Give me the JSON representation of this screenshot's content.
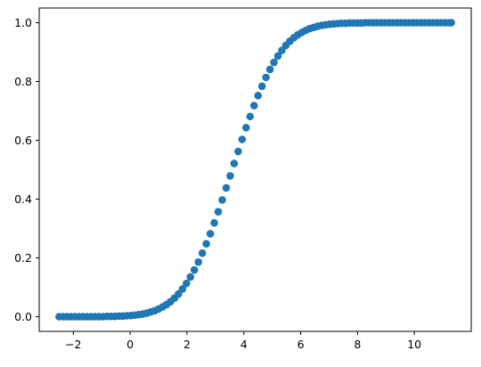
{
  "chart_data": {
    "type": "scatter",
    "title": "",
    "xlabel": "",
    "ylabel": "",
    "xlim": [
      -3.2,
      12.0
    ],
    "ylim": [
      -0.05,
      1.05
    ],
    "x_ticks": [
      -2,
      0,
      2,
      4,
      6,
      8,
      10
    ],
    "x_tick_labels": [
      "−2",
      "0",
      "2",
      "4",
      "6",
      "8",
      "10"
    ],
    "y_ticks": [
      0.0,
      0.2,
      0.4,
      0.6,
      0.8,
      1.0
    ],
    "y_tick_labels": [
      "0.0",
      "0.2",
      "0.4",
      "0.6",
      "0.8",
      "1.0"
    ],
    "grid": false,
    "legend": "none",
    "marker_color": "#1f77b4",
    "series": [
      {
        "x": [
          -2.5,
          -2.36,
          -2.22,
          -2.08,
          -1.94,
          -1.8,
          -1.66,
          -1.52,
          -1.38,
          -1.24,
          -1.1,
          -0.96,
          -0.82,
          -0.68,
          -0.54,
          -0.4,
          -0.26,
          -0.12,
          0.02,
          0.16,
          0.3,
          0.44,
          0.58,
          0.72,
          0.86,
          1.0,
          1.14,
          1.28,
          1.42,
          1.56,
          1.7,
          1.84,
          1.98,
          2.12,
          2.26,
          2.4,
          2.54,
          2.68,
          2.82,
          2.96,
          3.1,
          3.24,
          3.38,
          3.52,
          3.66,
          3.8,
          3.94,
          4.08,
          4.22,
          4.36,
          4.5,
          4.64,
          4.78,
          4.92,
          5.06,
          5.2,
          5.34,
          5.48,
          5.62,
          5.76,
          5.9,
          6.04,
          6.18,
          6.32,
          6.46,
          6.6,
          6.74,
          6.88,
          7.02,
          7.16,
          7.3,
          7.44,
          7.58,
          7.72,
          7.86,
          8.0,
          8.14,
          8.28,
          8.42,
          8.56,
          8.7,
          8.84,
          8.98,
          9.12,
          9.26,
          9.4,
          9.54,
          9.68,
          9.82,
          9.96,
          10.1,
          10.24,
          10.38,
          10.52,
          10.66,
          10.8,
          10.94,
          11.08,
          11.22,
          11.3
        ],
        "y": [
          0.0,
          0.0,
          0.0,
          0.0,
          0.0,
          0.0,
          0.0,
          0.0,
          0.0,
          0.0,
          0.0,
          0.0,
          0.001,
          0.001,
          0.001,
          0.002,
          0.002,
          0.003,
          0.004,
          0.005,
          0.007,
          0.009,
          0.012,
          0.016,
          0.02,
          0.026,
          0.033,
          0.041,
          0.051,
          0.063,
          0.077,
          0.094,
          0.113,
          0.135,
          0.159,
          0.186,
          0.216,
          0.248,
          0.282,
          0.319,
          0.357,
          0.397,
          0.438,
          0.479,
          0.521,
          0.562,
          0.603,
          0.643,
          0.681,
          0.718,
          0.752,
          0.784,
          0.814,
          0.841,
          0.865,
          0.887,
          0.906,
          0.923,
          0.937,
          0.949,
          0.959,
          0.967,
          0.974,
          0.98,
          0.984,
          0.988,
          0.991,
          0.993,
          0.995,
          0.996,
          0.997,
          0.998,
          0.998,
          0.999,
          0.999,
          0.999,
          0.999,
          1.0,
          1.0,
          1.0,
          1.0,
          1.0,
          1.0,
          1.0,
          1.0,
          1.0,
          1.0,
          1.0,
          1.0,
          1.0,
          1.0,
          1.0,
          1.0,
          1.0,
          1.0,
          1.0,
          1.0,
          1.0,
          1.0,
          1.0
        ]
      }
    ]
  }
}
